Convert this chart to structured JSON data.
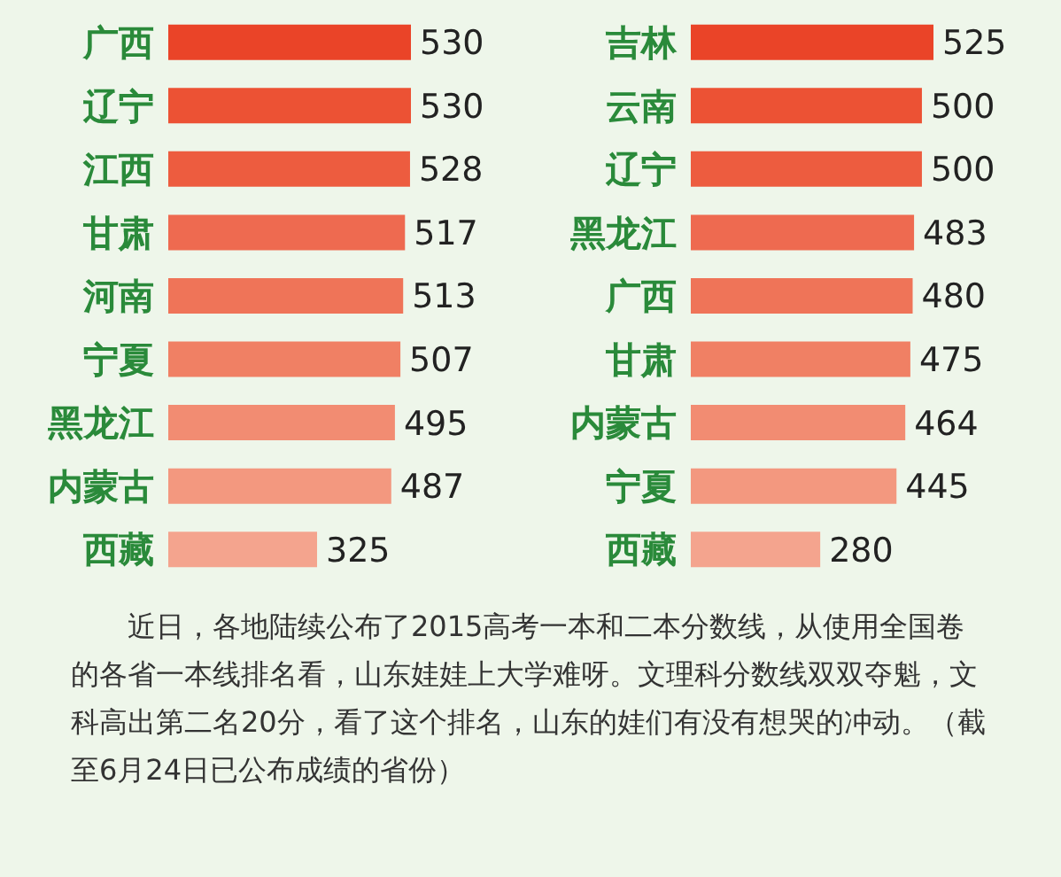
{
  "chart_data": [
    {
      "type": "bar",
      "orientation": "horizontal",
      "categories": [
        "广西",
        "辽宁",
        "江西",
        "甘肃",
        "河南",
        "宁夏",
        "黑龙江",
        "内蒙古",
        "西藏"
      ],
      "values": [
        530,
        530,
        528,
        517,
        513,
        507,
        495,
        487,
        325
      ],
      "colors": [
        "#ea4428",
        "#ec5234",
        "#ed5c3f",
        "#ee6a50",
        "#ef7458",
        "#f08064",
        "#f28c72",
        "#f3987f",
        "#f4a48e"
      ],
      "data_labels": true,
      "annotations": [
        "近日，各地陆续公布了2015高考一本和二本分数线，从使用全国卷的各省一本线排名看，山东娃娃上大学难呀。文理科分数线双双夺魁，文科高出第二名20分，看了这个排名，山东的娃们有没有想哭的冲动。（截至6月24日已公布成绩的省份）"
      ]
    },
    {
      "type": "bar",
      "orientation": "horizontal",
      "categories": [
        "吉林",
        "云南",
        "辽宁",
        "黑龙江",
        "广西",
        "甘肃",
        "内蒙古",
        "宁夏",
        "西藏"
      ],
      "values": [
        525,
        500,
        500,
        483,
        480,
        475,
        464,
        445,
        280
      ],
      "colors": [
        "#ea4428",
        "#ec5234",
        "#ed5c3f",
        "#ee6a50",
        "#ef7458",
        "#f08064",
        "#f28c72",
        "#f3987f",
        "#f4a48e"
      ],
      "data_labels": true
    }
  ]
}
